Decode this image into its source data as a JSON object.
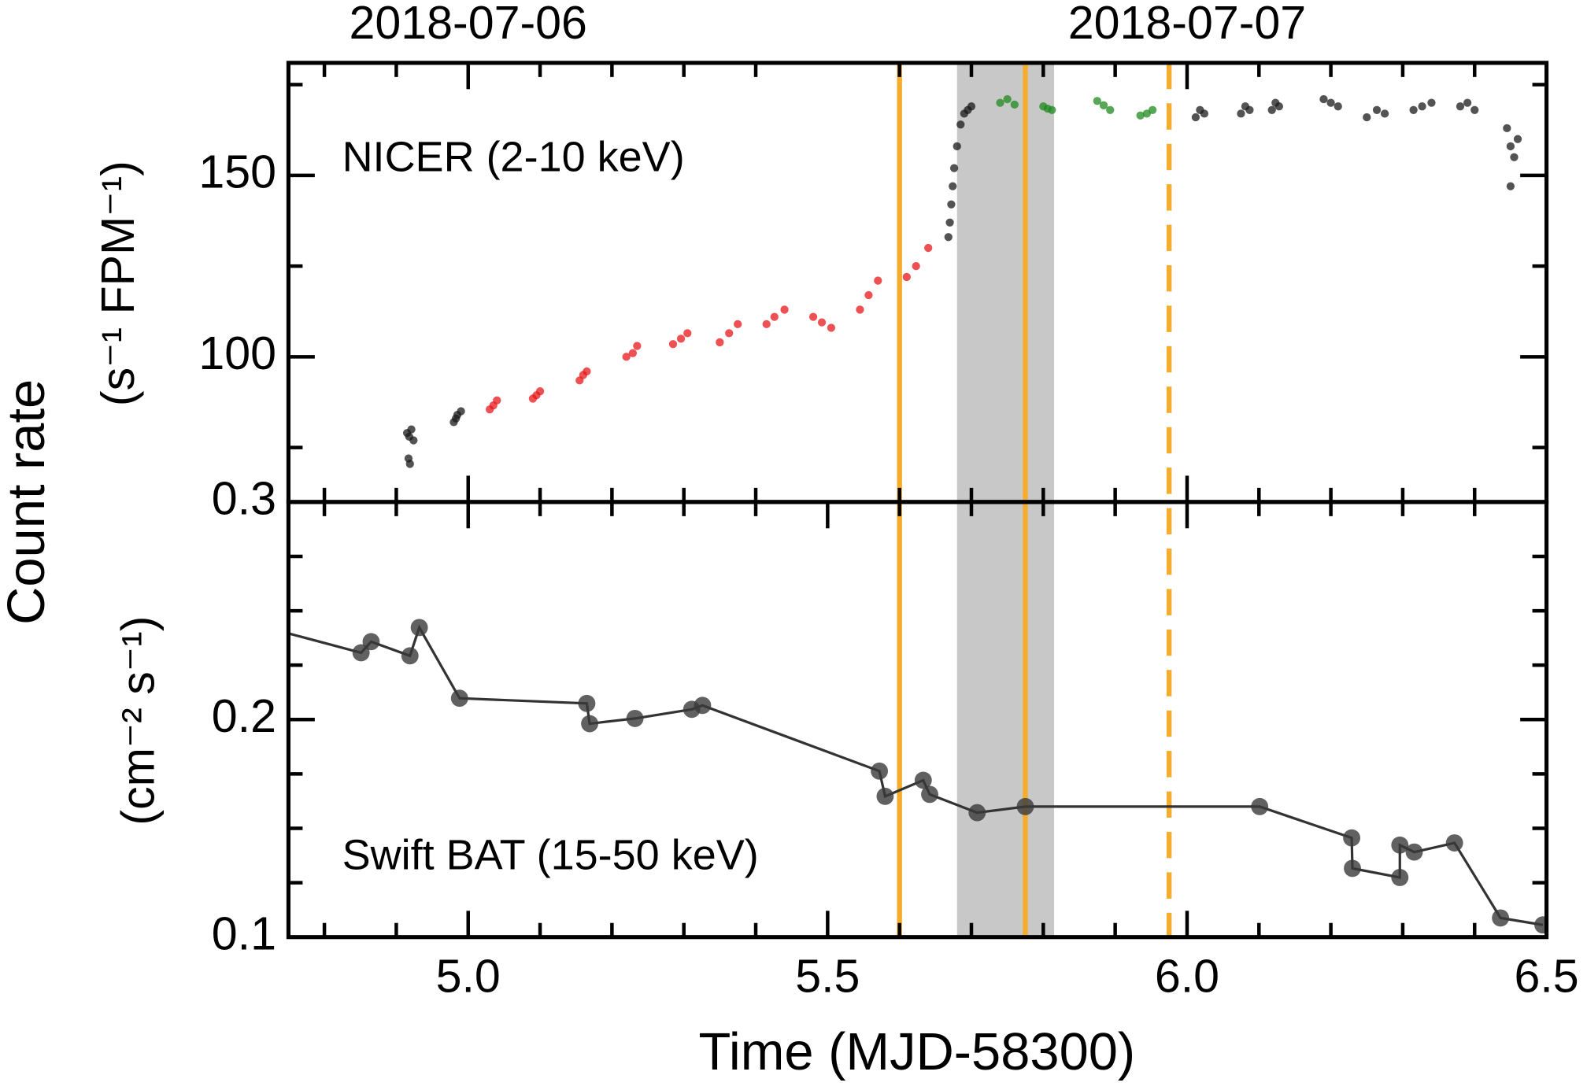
{
  "ylabel": "Count rate",
  "vlines": [
    {
      "x": 5.6,
      "style": "solid"
    },
    {
      "x": 5.775,
      "style": "solid"
    },
    {
      "x": 5.975,
      "style": "dashed"
    }
  ],
  "vline_color": "#f5ad2f",
  "shaded_span": [
    5.68,
    5.815
  ],
  "shaded_color": "#c8c8c8",
  "chart_data": [
    {
      "type": "scatter",
      "annotation": "NICER (2-10 keV)",
      "ylabel": "(s⁻¹ FPM⁻¹)",
      "xlim": [
        4.75,
        6.5
      ],
      "ylim": [
        60,
        181
      ],
      "yticks": [
        100,
        150
      ],
      "yminor_ticks": [
        75,
        125,
        175
      ],
      "top_xticks": [
        {
          "value": 5,
          "label": "2018-07-06"
        },
        {
          "value": 6,
          "label": "2018-07-07"
        }
      ],
      "xminor_ticks": [
        4.8,
        4.9,
        5.1,
        5.2,
        5.3,
        5.4,
        5.6,
        5.7,
        5.8,
        5.9,
        6.1,
        6.2,
        6.3,
        6.4
      ],
      "series": [
        {
          "color": "#1a1a1a",
          "x": [
            4.915,
            4.918,
            4.921,
            4.924,
            4.917,
            4.919,
            4.98,
            4.985,
            4.99,
            4.983,
            5.668,
            5.67,
            5.672,
            5.674,
            5.676,
            5.68,
            5.685,
            5.69,
            5.695,
            5.7,
            6.012,
            6.018,
            6.024,
            6.075,
            6.081,
            6.087,
            6.118,
            6.123,
            6.128,
            6.19,
            6.2,
            6.21,
            6.25,
            6.264,
            6.275,
            6.315,
            6.327,
            6.34,
            6.38,
            6.39,
            6.4,
            6.445,
            6.45,
            6.455,
            6.46,
            6.45
          ],
          "values": [
            79,
            78,
            80,
            77,
            72,
            70.5,
            82,
            84,
            85,
            83,
            133,
            137,
            142,
            147,
            152,
            158,
            164,
            167,
            168,
            169,
            166,
            168,
            167,
            167,
            169,
            168,
            168,
            170,
            169,
            171,
            170,
            169,
            166,
            168,
            167,
            168,
            169,
            170,
            169,
            170,
            168,
            163,
            158,
            155,
            160,
            147
          ]
        },
        {
          "color": "#e8171b",
          "x": [
            5.03,
            5.035,
            5.04,
            5.09,
            5.095,
            5.1,
            5.155,
            5.16,
            5.165,
            5.22,
            5.229,
            5.235,
            5.285,
            5.296,
            5.305,
            5.35,
            5.363,
            5.375,
            5.415,
            5.426,
            5.44,
            5.48,
            5.492,
            5.505,
            5.545,
            5.557,
            5.57,
            5.61,
            5.623,
            5.64
          ],
          "values": [
            85.5,
            86.6,
            88,
            88.5,
            89.4,
            90.5,
            93.5,
            95,
            96,
            100,
            101,
            103,
            103.5,
            105,
            106.5,
            104,
            106.5,
            109,
            109,
            111,
            113,
            111,
            109.5,
            108,
            113,
            117,
            121,
            122,
            125,
            130
          ]
        },
        {
          "color": "#1d8a1d",
          "x": [
            5.74,
            5.75,
            5.76,
            5.8,
            5.806,
            5.812,
            5.875,
            5.884,
            5.893,
            5.935,
            5.944,
            5.952
          ],
          "values": [
            170,
            171,
            169.5,
            169,
            168.4,
            168,
            170.5,
            169.3,
            168,
            166.5,
            167,
            168
          ]
        }
      ]
    },
    {
      "type": "line",
      "annotation": "Swift BAT (15-50 keV)",
      "ylabel": "(cm⁻² s⁻¹)",
      "xlabel": "Time (MJD-58300)",
      "xlim": [
        4.75,
        6.5
      ],
      "ylim": [
        0.1,
        0.3
      ],
      "xticks": [
        {
          "value": 5,
          "label": "5.0"
        },
        5.5,
        {
          "value": 6,
          "label": "6.0"
        },
        6.5
      ],
      "xminor_ticks": [
        4.8,
        4.9,
        5.1,
        5.2,
        5.3,
        5.4,
        5.6,
        5.7,
        5.8,
        5.9,
        6.1,
        6.2,
        6.3,
        6.4
      ],
      "yticks": [
        0.1,
        0.2,
        0.3
      ],
      "yminor_ticks": [
        0.125,
        0.15,
        0.175,
        0.225,
        0.25,
        0.275
      ],
      "color": "#333333",
      "x": [
        4.7,
        4.851,
        4.865,
        4.919,
        4.932,
        4.988,
        5.165,
        5.169,
        5.232,
        5.311,
        5.326,
        5.572,
        5.58,
        5.633,
        5.642,
        5.708,
        5.775,
        6.101,
        6.229,
        6.23,
        6.296,
        6.296,
        6.316,
        6.372,
        6.436,
        6.495
      ],
      "values": [
        0.244,
        0.2307,
        0.2358,
        0.2293,
        0.2423,
        0.2098,
        0.2074,
        0.1981,
        0.2005,
        0.2047,
        0.2065,
        0.1763,
        0.1647,
        0.1721,
        0.1656,
        0.1572,
        0.16,
        0.16,
        0.1456,
        0.1316,
        0.1274,
        0.1423,
        0.1391,
        0.1433,
        0.1088,
        0.1056
      ]
    }
  ]
}
